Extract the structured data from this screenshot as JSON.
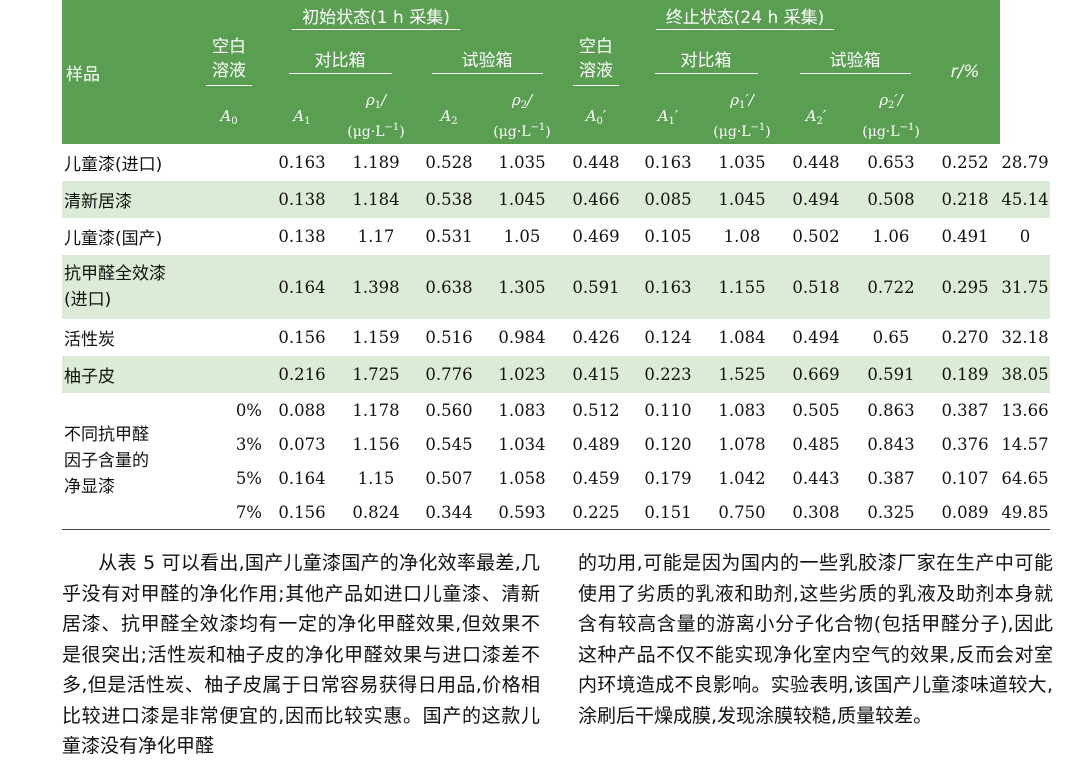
{
  "table": {
    "header": {
      "sample": "样品",
      "initial_group": "初始状态(1 h 采集)",
      "final_group": "终止状态(24 h 采集)",
      "blank": "空白溶液",
      "control": "对比箱",
      "test": "试验箱",
      "r_label": "r/%",
      "A0": "A0",
      "A1": "A1",
      "rho1": "ρ1/",
      "A2": "A2",
      "rho2": "ρ2/",
      "A0p": "A0′",
      "A1p": "A1′",
      "rho1p": "ρ1′/",
      "A2p": "A2′",
      "rho2p": "ρ2′/",
      "unit": "(μg·L−1)"
    },
    "rows": [
      {
        "name": "儿童漆(进口)",
        "values": [
          "0.163",
          "1.189",
          "0.528",
          "1.035",
          "0.448",
          "0.163",
          "1.035",
          "0.448",
          "0.653",
          "0.252",
          "28.79"
        ]
      },
      {
        "name": "清新居漆",
        "values": [
          "0.138",
          "1.184",
          "0.538",
          "1.045",
          "0.466",
          "0.085",
          "1.045",
          "0.494",
          "0.508",
          "0.218",
          "45.14"
        ]
      },
      {
        "name": "儿童漆(国产)",
        "values": [
          "0.138",
          "1.17",
          "0.531",
          "1.05",
          "0.469",
          "0.105",
          "1.08",
          "0.502",
          "1.06",
          "0.491",
          "0"
        ]
      },
      {
        "name_line1": "抗甲醛全效漆",
        "name_line2": "(进口)",
        "values": [
          "0.164",
          "1.398",
          "0.638",
          "1.305",
          "0.591",
          "0.163",
          "1.155",
          "0.518",
          "0.722",
          "0.295",
          "31.75"
        ]
      },
      {
        "name": "活性炭",
        "values": [
          "0.156",
          "1.159",
          "0.516",
          "0.984",
          "0.426",
          "0.124",
          "1.084",
          "0.494",
          "0.65",
          "0.270",
          "32.18"
        ]
      },
      {
        "name": "柚子皮",
        "values": [
          "0.216",
          "1.725",
          "0.776",
          "1.023",
          "0.415",
          "0.223",
          "1.525",
          "0.669",
          "0.591",
          "0.189",
          "38.05"
        ]
      }
    ],
    "group": {
      "line1": "不同抗甲醛",
      "line2": "因子含量的",
      "line3": "净显漆",
      "rows": [
        {
          "pct": "0%",
          "values": [
            "0.088",
            "1.178",
            "0.560",
            "1.083",
            "0.512",
            "0.110",
            "1.083",
            "0.505",
            "0.863",
            "0.387",
            "13.66"
          ]
        },
        {
          "pct": "3%",
          "values": [
            "0.073",
            "1.156",
            "0.545",
            "1.034",
            "0.489",
            "0.120",
            "1.078",
            "0.485",
            "0.843",
            "0.376",
            "14.57"
          ]
        },
        {
          "pct": "5%",
          "values": [
            "0.164",
            "1.15",
            "0.507",
            "1.058",
            "0.459",
            "0.179",
            "1.042",
            "0.443",
            "0.387",
            "0.107",
            "64.65"
          ]
        },
        {
          "pct": "7%",
          "values": [
            "0.156",
            "0.824",
            "0.344",
            "0.593",
            "0.225",
            "0.151",
            "0.750",
            "0.308",
            "0.325",
            "0.089",
            "49.85"
          ]
        }
      ]
    },
    "colors": {
      "header_bg": "#5a9e52",
      "alt_row_bg": "#dcebd6"
    }
  },
  "text": {
    "left_paragraph": "从表 5 可以看出,国产儿童漆国产的净化效率最差,几乎没有对甲醛的净化作用;其他产品如进口儿童漆、清新居漆、抗甲醛全效漆均有一定的净化甲醛效果,但效果不是很突出;活性炭和柚子皮的净化甲醛效果与进口漆差不多,但是活性炭、柚子皮属于日常容易获得日用品,价格相比较进口漆是非常便宜的,因而比较实惠。国产的这款儿童漆没有净化甲醛",
    "right_paragraph": "的功用,可能是因为国内的一些乳胶漆厂家在生产中可能使用了劣质的乳液和助剂,这些劣质的乳液及助剂本身就含有较高含量的游离小分子化合物(包括甲醛分子),因此这种产品不仅不能实现净化室内空气的效果,反而会对室内环境造成不良影响。实验表明,该国产儿童漆味道较大,涂刷后干燥成膜,发现涂膜较糙,质量较差。"
  }
}
